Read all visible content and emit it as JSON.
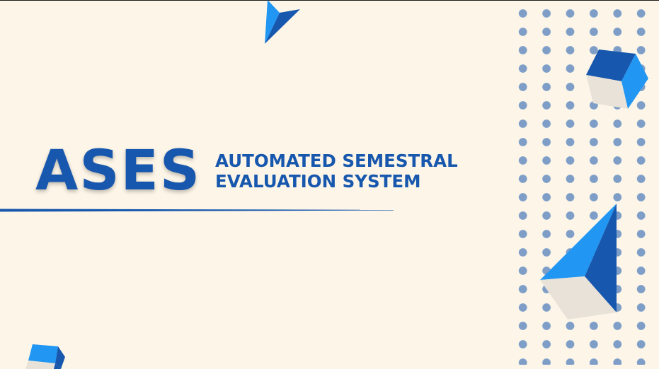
{
  "slide": {
    "acronym": "ASES",
    "subtitle_line1": "AUTOMATED SEMESTRAL",
    "subtitle_line2": "EVALUATION SYSTEM"
  },
  "colors": {
    "background": "#fdf6e8",
    "primary_blue": "#1757ad",
    "light_blue": "#2196f3",
    "cube_side": "#e8e2d8",
    "dots": "#7e9ec8"
  },
  "decorations": {
    "shapes": [
      "paper-plane-icon",
      "cube-icon",
      "pyramid-icon",
      "cube-icon",
      "dot-grid-pattern"
    ]
  }
}
